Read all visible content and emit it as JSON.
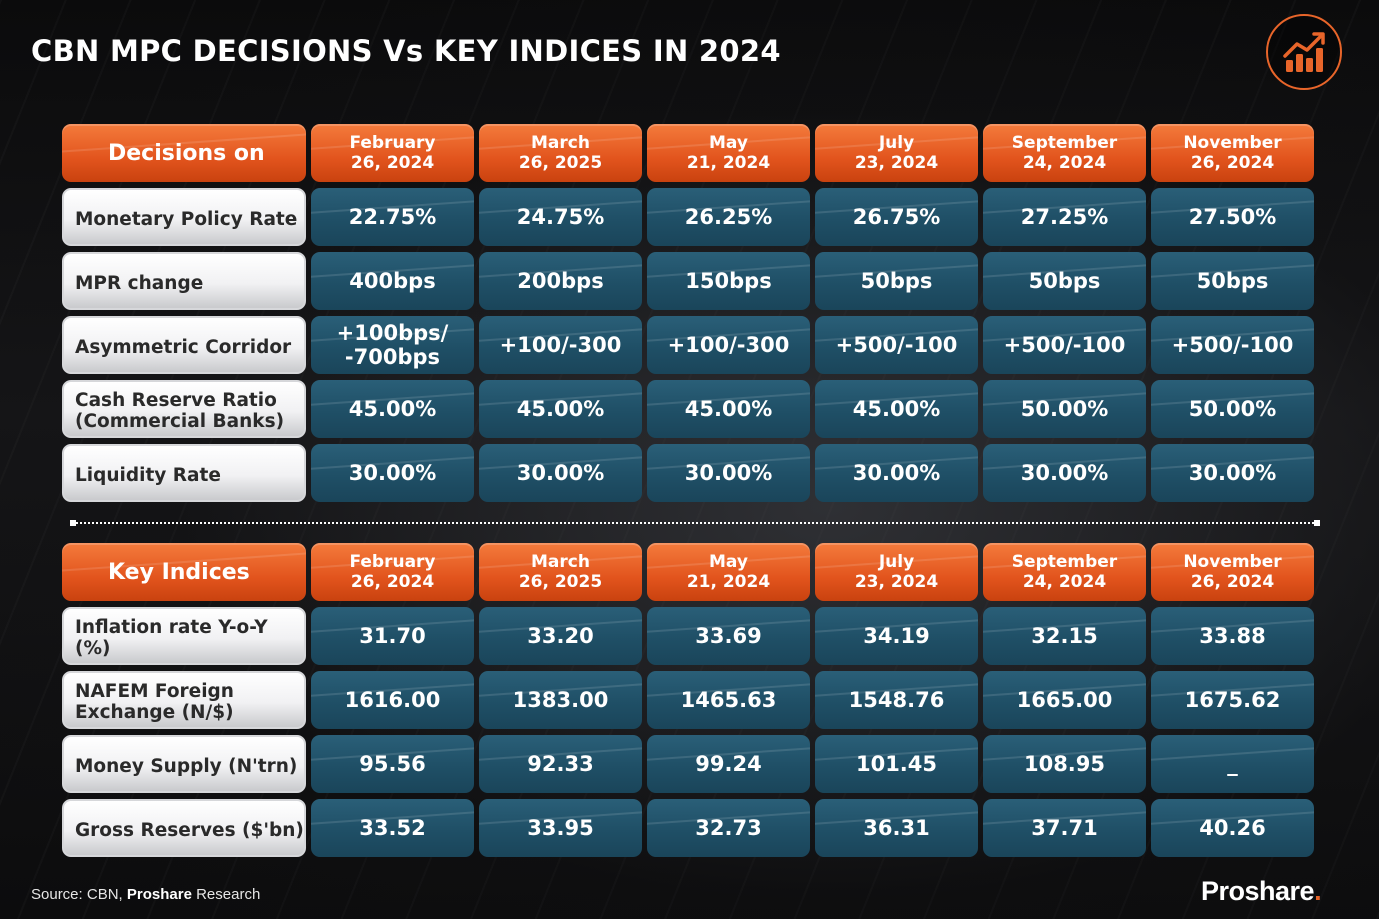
{
  "title": "CBN MPC DECISIONS Vs KEY INDICES IN 2024",
  "colors": {
    "accent": "#e8652a",
    "cell_teal": "#1f4f66",
    "label_bg": "#f1f1f3"
  },
  "logo_icon": "chart-growth-icon",
  "decisions": {
    "header_label": "Decisions on",
    "dates": [
      {
        "line1": "February",
        "line2": "26, 2024"
      },
      {
        "line1": "March",
        "line2": "26, 2025"
      },
      {
        "line1": "May",
        "line2": "21, 2024"
      },
      {
        "line1": "July",
        "line2": "23, 2024"
      },
      {
        "line1": "September",
        "line2": "24, 2024"
      },
      {
        "line1": "November",
        "line2": "26, 2024"
      }
    ],
    "rows": [
      {
        "label": "Monetary Policy Rate",
        "values": [
          "22.75%",
          "24.75%",
          "26.25%",
          "26.75%",
          "27.25%",
          "27.50%"
        ]
      },
      {
        "label": "MPR change",
        "values": [
          "400bps",
          "200bps",
          "150bps",
          "50bps",
          "50bps",
          "50bps"
        ]
      },
      {
        "label": "Asymmetric Corridor",
        "values": [
          "+100bps/\n-700bps",
          "+100/-300",
          "+100/-300",
          "+500/-100",
          "+500/-100",
          "+500/-100"
        ]
      },
      {
        "label": "Cash Reserve Ratio\n(Commercial Banks)",
        "values": [
          "45.00%",
          "45.00%",
          "45.00%",
          "45.00%",
          "50.00%",
          "50.00%"
        ]
      },
      {
        "label": "Liquidity Rate",
        "values": [
          "30.00%",
          "30.00%",
          "30.00%",
          "30.00%",
          "30.00%",
          "30.00%"
        ]
      }
    ]
  },
  "indices": {
    "header_label": "Key Indices",
    "dates": [
      {
        "line1": "February",
        "line2": "26, 2024"
      },
      {
        "line1": "March",
        "line2": "26, 2025"
      },
      {
        "line1": "May",
        "line2": "21, 2024"
      },
      {
        "line1": "July",
        "line2": "23, 2024"
      },
      {
        "line1": "September",
        "line2": "24, 2024"
      },
      {
        "line1": "November",
        "line2": "26, 2024"
      }
    ],
    "rows": [
      {
        "label": "Inflation rate Y-o-Y (%)",
        "values": [
          "31.70",
          "33.20",
          "33.69",
          "34.19",
          "32.15",
          "33.88"
        ]
      },
      {
        "label": "NAFEM Foreign\nExchange (N/$)",
        "values": [
          "1616.00",
          "1383.00",
          "1465.63",
          "1548.76",
          "1665.00",
          "1675.62"
        ]
      },
      {
        "label": "Money Supply (N'trn)",
        "values": [
          "95.56",
          "92.33",
          "99.24",
          "101.45",
          "108.95",
          "_"
        ]
      },
      {
        "label": "Gross Reserves ($'bn)",
        "values": [
          "33.52",
          "33.95",
          "32.73",
          "36.31",
          "37.71",
          "40.26"
        ]
      }
    ]
  },
  "footer": {
    "source_prefix": "Source: CBN, ",
    "source_bold": "Proshare",
    "source_suffix": " Research",
    "brand": "Proshare",
    "brand_dot": "."
  }
}
